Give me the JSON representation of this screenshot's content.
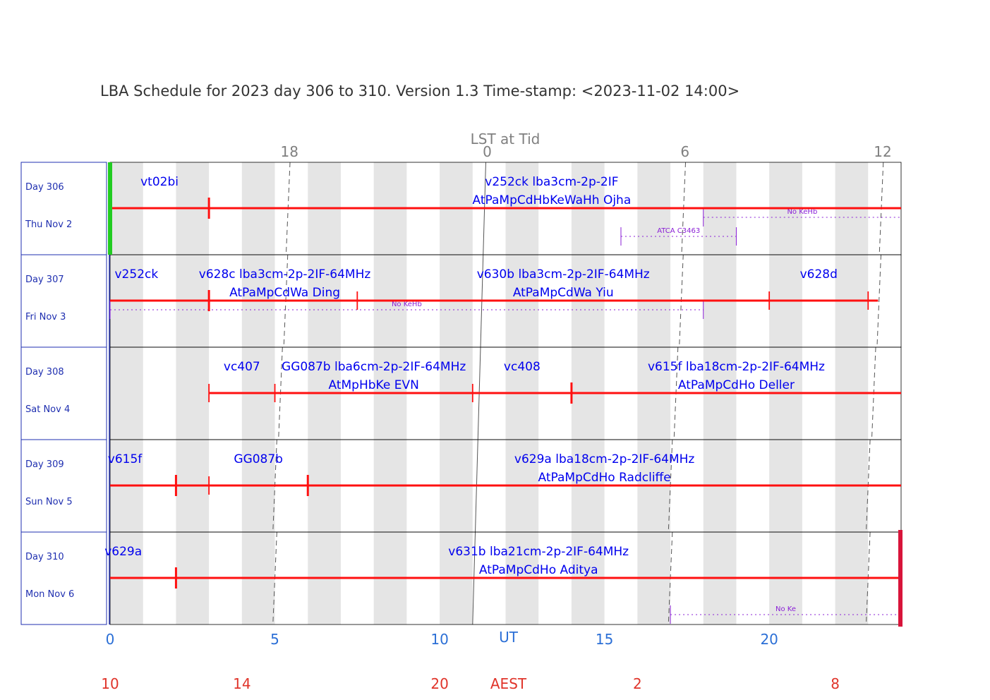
{
  "chart_data": {
    "type": "schedule-timeline",
    "title": "LBA Schedule for 2023 day 306 to 310. Version 1.3 Time-stamp: <2023-11-02 14:00>",
    "x_range_ut_hours": [
      0,
      24
    ],
    "top_axis": {
      "label": "LST at Tid",
      "ticks": [
        {
          "label": "18",
          "ut": 5.4
        },
        {
          "label": "0",
          "ut": 11.4
        },
        {
          "label": "6",
          "ut": 17.4
        },
        {
          "label": "12",
          "ut": 23.4
        }
      ]
    },
    "bottom_axis_ut": {
      "label": "UT",
      "label_ut": 12.0,
      "ticks": [
        {
          "label": "0",
          "ut": 0
        },
        {
          "label": "5",
          "ut": 5
        },
        {
          "label": "10",
          "ut": 10
        },
        {
          "label": "15",
          "ut": 15
        },
        {
          "label": "20",
          "ut": 20
        }
      ]
    },
    "bottom_axis_aest": {
      "label": "AEST",
      "label_ut": 12.0,
      "ticks": [
        {
          "label": "10",
          "ut": 0
        },
        {
          "label": "14",
          "ut": 4
        },
        {
          "label": "20",
          "ut": 10
        },
        {
          "label": "2",
          "ut": 16
        },
        {
          "label": "8",
          "ut": 22
        }
      ]
    },
    "colors": {
      "frame": "#1f2fb0",
      "shade": "#e5e5e5",
      "bar": "#ff1010",
      "project_text": "#0000ee",
      "note": "#8a1fd6",
      "start_marker": "#22cc22",
      "end_marker": "#d8143a",
      "lst_line": "#555555"
    },
    "days": [
      {
        "day_label": "Day 306",
        "date_label": "Thu Nov 2",
        "lst_dash": [
          5.4,
          17.4,
          23.4
        ],
        "bar": {
          "start": 0,
          "end": 24
        },
        "ticks": [
          {
            "ut": 3,
            "major": true
          }
        ],
        "labels": [
          {
            "text": "vt02bi",
            "ut": 1.5,
            "row": 1
          },
          {
            "text": "v252ck lba3cm-2p-2IF",
            "ut": 13.4,
            "row": 1
          },
          {
            "text": "AtPaMpCdHbKeWaHh Ojha",
            "ut": 13.4,
            "row": 2
          }
        ],
        "notes": [
          {
            "text": "No KeHb",
            "start": 18.0,
            "end": 24.0,
            "level": 1,
            "left_cap": true,
            "right_cap": false
          },
          {
            "text": "ATCA C3463",
            "start": 15.5,
            "end": 19.0,
            "level": 2,
            "left_cap": true,
            "right_cap": true
          }
        ]
      },
      {
        "day_label": "Day 307",
        "date_label": "Fri Nov 3",
        "lst_dash": [
          5.33,
          17.33,
          23.33
        ],
        "bar": {
          "start": 0,
          "end": 23.3
        },
        "ticks": [
          {
            "ut": 3,
            "major": true
          },
          {
            "ut": 7.5,
            "major": false
          },
          {
            "ut": 20,
            "major": false
          },
          {
            "ut": 23,
            "major": false
          }
        ],
        "labels": [
          {
            "text": "v252ck",
            "ut": 0.8,
            "row": 1
          },
          {
            "text": "v628c lba3cm-2p-2IF-64MHz",
            "ut": 5.3,
            "row": 1
          },
          {
            "text": "AtPaMpCdWa Ding",
            "ut": 5.3,
            "row": 2
          },
          {
            "text": "v630b lba3cm-2p-2IF-64MHz",
            "ut": 13.75,
            "row": 1
          },
          {
            "text": "AtPaMpCdWa Yiu",
            "ut": 13.75,
            "row": 2
          },
          {
            "text": "v628d",
            "ut": 21.5,
            "row": 1
          }
        ],
        "notes": [
          {
            "text": "No KeHb",
            "start": 0,
            "end": 18.0,
            "level": 1,
            "left_cap": true,
            "right_cap": true
          }
        ]
      },
      {
        "day_label": "Day 308",
        "date_label": "Sat Nov 4",
        "lst_dash": [
          5.17,
          17.17,
          23.17
        ],
        "bar": {
          "start": 3,
          "end": 24
        },
        "ticks": [
          {
            "ut": 3,
            "major": false
          },
          {
            "ut": 5,
            "major": false
          },
          {
            "ut": 11,
            "major": false
          },
          {
            "ut": 14,
            "major": true
          }
        ],
        "labels": [
          {
            "text": "vc407",
            "ut": 4.0,
            "row": 1
          },
          {
            "text": "GG087b lba6cm-2p-2IF-64MHz",
            "ut": 8.0,
            "row": 1
          },
          {
            "text": "AtMpHbKe EVN",
            "ut": 8.0,
            "row": 2
          },
          {
            "text": "vc408",
            "ut": 12.5,
            "row": 1
          },
          {
            "text": "v615f lba18cm-2p-2IF-64MHz",
            "ut": 19.0,
            "row": 1
          },
          {
            "text": "AtPaMpCdHo Deller",
            "ut": 19.0,
            "row": 2
          }
        ],
        "notes": []
      },
      {
        "day_label": "Day 309",
        "date_label": "Sun Nov 5",
        "lst_dash": [
          5.0,
          17.0,
          23.0
        ],
        "bar": {
          "start": 0,
          "end": 24
        },
        "ticks": [
          {
            "ut": 2,
            "major": true
          },
          {
            "ut": 3,
            "major": false
          },
          {
            "ut": 6,
            "major": true
          }
        ],
        "labels": [
          {
            "text": "v615f",
            "ut": 0.45,
            "row": 1
          },
          {
            "text": "GG087b",
            "ut": 4.5,
            "row": 1
          },
          {
            "text": "v629a lba18cm-2p-2IF-64MHz",
            "ut": 15.0,
            "row": 1
          },
          {
            "text": "AtPaMpCdHo Radcliffe",
            "ut": 15.0,
            "row": 2
          }
        ],
        "notes": []
      },
      {
        "day_label": "Day 310",
        "date_label": "Mon Nov 6",
        "lst_dash": [
          5.0,
          17.0,
          23.0
        ],
        "bar": {
          "start": 0,
          "end": 24
        },
        "ticks": [
          {
            "ut": 2,
            "major": true
          }
        ],
        "labels": [
          {
            "text": "v629a",
            "ut": 0.4,
            "row": 1
          },
          {
            "text": "v631b lba21cm-2p-2IF-64MHz",
            "ut": 13.0,
            "row": 1
          },
          {
            "text": "AtPaMpCdHo Aditya",
            "ut": 13.0,
            "row": 2
          }
        ],
        "notes": [
          {
            "text": "No Ke",
            "start": 17.0,
            "end": 24.0,
            "level": 3,
            "left_cap": true,
            "right_cap": false
          }
        ]
      }
    ],
    "lst_zero_line": {
      "ut_top": 11.4,
      "ut_bottom": 11.0
    }
  }
}
